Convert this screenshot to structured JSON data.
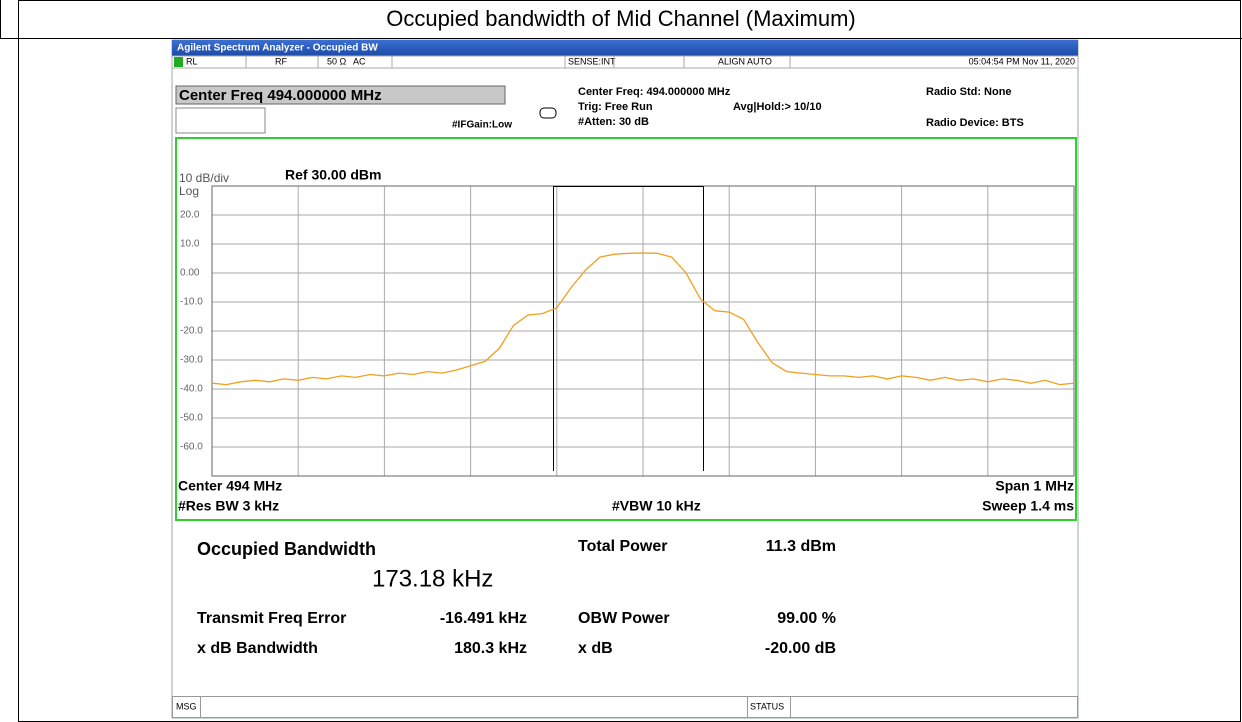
{
  "title": "Occupied bandwidth of Mid Channel (Maximum)",
  "header": {
    "app": "Agilent Spectrum Analyzer - Occupied BW",
    "rl": "RL",
    "rf": "RF",
    "impedance": "50 Ω",
    "coupling": "AC",
    "sense": "SENSE:INT",
    "align": "ALIGN AUTO",
    "time": "05:04:54 PM Nov 11, 2020",
    "center_freq": "Center Freq 494.000000 MHz",
    "if_gain": "#IFGain:Low",
    "center_freq_info": "Center Freq: 494.000000 MHz",
    "trig": "Trig: Free Run",
    "atten": "#Atten: 30 dB",
    "avg": "Avg|Hold:> 10/10",
    "radio_std": "Radio Std: None",
    "radio_device": "Radio Device: BTS"
  },
  "plot": {
    "scale": "10 dB/div",
    "ref": "Ref 30.00 dBm",
    "log": "Log",
    "ylim": [
      -70,
      30
    ],
    "yticks": [
      {
        "value": 20,
        "label": "20.0"
      },
      {
        "value": 10,
        "label": "10.0"
      },
      {
        "value": 0,
        "label": "0.00"
      },
      {
        "value": -10,
        "label": "-10.0"
      },
      {
        "value": -20,
        "label": "-20.0"
      },
      {
        "value": -30,
        "label": "-30.0"
      },
      {
        "value": -40,
        "label": "-40.0"
      },
      {
        "value": -50,
        "label": "-50.0"
      },
      {
        "value": -60,
        "label": "-60.0"
      }
    ],
    "trace_color": "#f0a020",
    "trace": [
      -38,
      -38.5,
      -37.5,
      -37,
      -37.5,
      -36.5,
      -37,
      -36,
      -36.5,
      -35.5,
      -36,
      -35,
      -35.5,
      -34.5,
      -35,
      -34,
      -34.5,
      -33.5,
      -32,
      -30.5,
      -26,
      -18,
      -14.5,
      -14,
      -12,
      -5,
      1,
      5.5,
      6.5,
      6.8,
      6.9,
      6.8,
      5.5,
      0,
      -9,
      -13,
      -13.5,
      -16,
      -24,
      -31,
      -34,
      -34.5,
      -35,
      -35.5,
      -35.5,
      -36,
      -35.5,
      -36.5,
      -35.5,
      -36,
      -37,
      -36,
      -37,
      -36.5,
      -37.5,
      -36.5,
      -37,
      -38,
      -37,
      -38.5,
      -38
    ],
    "center": "Center 494 MHz",
    "res_bw": "#Res BW 3 kHz",
    "vbw": "#VBW 10 kHz",
    "span": "Span 1 MHz",
    "sweep": "Sweep 1.4 ms"
  },
  "results": {
    "obw_label": "Occupied Bandwidth",
    "obw_value": "173.18 kHz",
    "total_power_label": "Total Power",
    "total_power": "11.3 dBm",
    "tfe_label": "Transmit Freq Error",
    "tfe": "-16.491 kHz",
    "obw_power_label": "OBW Power",
    "obw_power": "99.00 %",
    "xdb_bw_label": "x dB Bandwidth",
    "xdb_bw": "180.3 kHz",
    "xdb_label": "x dB",
    "xdb": "-20.00 dB"
  },
  "statusbar": {
    "msg": "MSG",
    "status": "STATUS"
  }
}
